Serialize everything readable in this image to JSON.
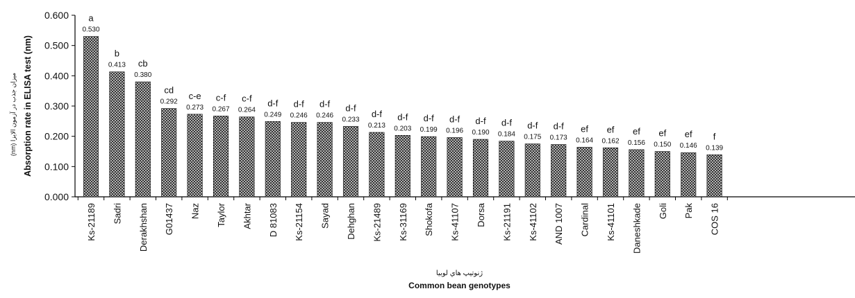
{
  "chart_data": {
    "type": "bar",
    "xlabel": "Common bean genotypes",
    "xlabel_fa": "ژنوتیپ هاي لوبيا",
    "ylabel": "Absorption rate in ELISA test (nm)",
    "ylabel_fa": "میزان جذب در آزمون الایزا (nm)",
    "ylim": [
      0,
      0.6
    ],
    "yticks": [
      "0.000",
      "0.100",
      "0.200",
      "0.300",
      "0.400",
      "0.500",
      "0.600"
    ],
    "grid": false,
    "bar_pattern": "dark cross-hatch",
    "categories": [
      "Ks-21189",
      "Sadri",
      "Derakhshan",
      "G01437",
      "Naz",
      "Taylor",
      "Akhtar",
      "D 81083",
      "Ks-21154",
      "Sayad",
      "Dehghan",
      "Ks-21489",
      "Ks-31169",
      "Shokofa",
      "Ks-41107",
      "Dorsa",
      "Ks-21191",
      "Ks-41102",
      "AND 1007",
      "Cardinal",
      "Ks-41101",
      "Daneshkade",
      "Goli",
      "Pak",
      "COS 16"
    ],
    "values": [
      0.53,
      0.413,
      0.38,
      0.292,
      0.273,
      0.267,
      0.264,
      0.249,
      0.246,
      0.246,
      0.233,
      0.213,
      0.203,
      0.199,
      0.196,
      0.19,
      0.184,
      0.175,
      0.173,
      0.164,
      0.162,
      0.156,
      0.15,
      0.146,
      0.139
    ],
    "value_labels": [
      "0.530",
      "0.413",
      "0.380",
      "0.292",
      "0.273",
      "0.267",
      "0.264",
      "0.249",
      "0.246",
      "0.246",
      "0.233",
      "0.213",
      "0.203",
      "0.199",
      "0.196",
      "0.190",
      "0.184",
      "0.175",
      "0.173",
      "0.164",
      "0.162",
      "0.156",
      "0.150",
      "0.146",
      "0.139"
    ],
    "significance": [
      "a",
      "b",
      "cb",
      "cd",
      "c-e",
      "c-f",
      "c-f",
      "d-f",
      "d-f",
      "d-f",
      "d-f",
      "d-f",
      "d-f",
      "d-f",
      "d-f",
      "d-f",
      "d-f",
      "d-f",
      "d-f",
      "ef",
      "ef",
      "ef",
      "ef",
      "ef",
      "f"
    ]
  }
}
